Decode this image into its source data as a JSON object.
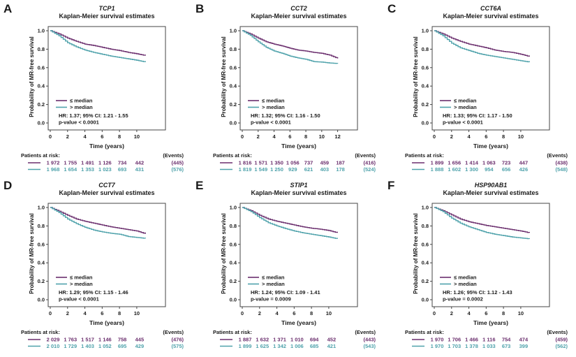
{
  "figure": {
    "subtitle": "Kaplan-Meier survival estimates",
    "ylabel": "Probability of MR-free survival",
    "xlabel": "Time (years)",
    "risk_header": "Patients at risk:",
    "events_header": "(Events)",
    "legend": [
      "≤ median",
      "> median"
    ],
    "colors": {
      "le_median": "#6b2f6e",
      "gt_median": "#4fa2ab",
      "text": "#1a1a1a",
      "box": "#444444"
    }
  },
  "chart_data": [
    {
      "type": "line",
      "panel": "A",
      "title": "TCP1",
      "ylim": [
        0,
        1
      ],
      "yticks": [
        0.0,
        0.2,
        0.4,
        0.6,
        0.8,
        1.0
      ],
      "xticks": [
        0,
        2,
        4,
        6,
        8,
        10
      ],
      "x_years": [
        0,
        1,
        2,
        3,
        4,
        5,
        6,
        7,
        8,
        9,
        10,
        11
      ],
      "series": [
        {
          "name": "≤ median",
          "color": "#6b2f6e",
          "values": [
            1.0,
            0.965,
            0.92,
            0.885,
            0.855,
            0.84,
            0.82,
            0.8,
            0.785,
            0.765,
            0.75,
            0.73
          ]
        },
        {
          "name": "> median",
          "color": "#4fa2ab",
          "values": [
            1.0,
            0.945,
            0.87,
            0.825,
            0.79,
            0.765,
            0.745,
            0.725,
            0.71,
            0.695,
            0.68,
            0.66
          ]
        }
      ],
      "hr_text": "HR: 1.37; 95% CI: 1.21 - 1.55",
      "p_text": "p-value < 0.0001",
      "risk": {
        "rows": [
          {
            "group": "≤ median",
            "counts": [
              "1 972",
              "1 755",
              "1 491",
              "1 126",
              "734",
              "442"
            ],
            "events": "(445)"
          },
          {
            "group": "> median",
            "counts": [
              "1 968",
              "1 654",
              "1 353",
              "1 023",
              "693",
              "431"
            ],
            "events": "(576)"
          }
        ]
      }
    },
    {
      "type": "line",
      "panel": "B",
      "title": "CCT2",
      "ylim": [
        0,
        1
      ],
      "yticks": [
        0.0,
        0.2,
        0.4,
        0.6,
        0.8,
        1.0
      ],
      "xticks": [
        0,
        2,
        4,
        6,
        8,
        10,
        12
      ],
      "x_years": [
        0,
        1,
        2,
        3,
        4,
        5,
        6,
        7,
        8,
        9,
        10,
        11,
        12
      ],
      "series": [
        {
          "name": "≤ median",
          "color": "#6b2f6e",
          "values": [
            1.0,
            0.965,
            0.92,
            0.88,
            0.855,
            0.835,
            0.81,
            0.79,
            0.78,
            0.765,
            0.755,
            0.735,
            0.7
          ]
        },
        {
          "name": "> median",
          "color": "#4fa2ab",
          "values": [
            1.0,
            0.95,
            0.88,
            0.82,
            0.78,
            0.755,
            0.725,
            0.705,
            0.69,
            0.665,
            0.66,
            0.65,
            0.645
          ]
        }
      ],
      "hr_text": "HR: 1.32; 95% CI: 1.16 - 1.50",
      "p_text": "p-value < 0.0001",
      "risk": {
        "rows": [
          {
            "group": "≤ median",
            "counts": [
              "1 816",
              "1 571",
              "1 350",
              "1 056",
              "737",
              "459",
              "187"
            ],
            "events": "(416)"
          },
          {
            "group": "> median",
            "counts": [
              "1 819",
              "1 549",
              "1 250",
              "929",
              "621",
              "403",
              "178"
            ],
            "events": "(524)"
          }
        ]
      }
    },
    {
      "type": "line",
      "panel": "C",
      "title": "CCT6A",
      "ylim": [
        0,
        1
      ],
      "yticks": [
        0.0,
        0.2,
        0.4,
        0.6,
        0.8,
        1.0
      ],
      "xticks": [
        0,
        2,
        4,
        6,
        8,
        10
      ],
      "x_years": [
        0,
        1,
        2,
        3,
        4,
        5,
        6,
        7,
        8,
        9,
        10,
        11
      ],
      "series": [
        {
          "name": "≤ median",
          "color": "#6b2f6e",
          "values": [
            1.0,
            0.965,
            0.92,
            0.885,
            0.855,
            0.835,
            0.815,
            0.79,
            0.775,
            0.765,
            0.745,
            0.72
          ]
        },
        {
          "name": "> median",
          "color": "#4fa2ab",
          "values": [
            1.0,
            0.945,
            0.865,
            0.815,
            0.785,
            0.755,
            0.735,
            0.72,
            0.705,
            0.69,
            0.675,
            0.66
          ]
        }
      ],
      "hr_text": "HR: 1.33; 95% CI: 1.17 - 1.50",
      "p_text": "p-value < 0.0001",
      "risk": {
        "rows": [
          {
            "group": "≤ median",
            "counts": [
              "1 899",
              "1 656",
              "1 414",
              "1 063",
              "723",
              "447"
            ],
            "events": "(438)"
          },
          {
            "group": "> median",
            "counts": [
              "1 888",
              "1 602",
              "1 300",
              "954",
              "656",
              "426"
            ],
            "events": "(548)"
          }
        ]
      }
    },
    {
      "type": "line",
      "panel": "D",
      "title": "CCT7",
      "ylim": [
        0,
        1
      ],
      "yticks": [
        0.0,
        0.2,
        0.4,
        0.6,
        0.8,
        1.0
      ],
      "xticks": [
        0,
        2,
        4,
        6,
        8,
        10
      ],
      "x_years": [
        0,
        1,
        2,
        3,
        4,
        5,
        6,
        7,
        8,
        9,
        10,
        11
      ],
      "series": [
        {
          "name": "≤ median",
          "color": "#6b2f6e",
          "values": [
            1.0,
            0.96,
            0.915,
            0.875,
            0.85,
            0.83,
            0.81,
            0.79,
            0.775,
            0.76,
            0.745,
            0.715
          ]
        },
        {
          "name": "> median",
          "color": "#4fa2ab",
          "values": [
            1.0,
            0.945,
            0.875,
            0.825,
            0.785,
            0.755,
            0.735,
            0.72,
            0.71,
            0.685,
            0.675,
            0.665
          ]
        }
      ],
      "hr_text": "HR: 1.29; 95% CI: 1.15 - 1.46",
      "p_text": "p-value < 0.0001",
      "risk": {
        "rows": [
          {
            "group": "≤ median",
            "counts": [
              "2 029",
              "1 763",
              "1 517",
              "1 146",
              "758",
              "445"
            ],
            "events": "(476)"
          },
          {
            "group": "> median",
            "counts": [
              "2 010",
              "1 729",
              "1 403",
              "1 052",
              "695",
              "429"
            ],
            "events": "(575)"
          }
        ]
      }
    },
    {
      "type": "line",
      "panel": "E",
      "title": "STIP1",
      "ylim": [
        0,
        1
      ],
      "yticks": [
        0.0,
        0.2,
        0.4,
        0.6,
        0.8,
        1.0
      ],
      "xticks": [
        0,
        2,
        4,
        6,
        8,
        10
      ],
      "x_years": [
        0,
        1,
        2,
        3,
        4,
        5,
        6,
        7,
        8,
        9,
        10,
        11
      ],
      "series": [
        {
          "name": "≤ median",
          "color": "#6b2f6e",
          "values": [
            1.0,
            0.965,
            0.915,
            0.875,
            0.85,
            0.83,
            0.81,
            0.79,
            0.775,
            0.765,
            0.75,
            0.725
          ]
        },
        {
          "name": "> median",
          "color": "#4fa2ab",
          "values": [
            1.0,
            0.955,
            0.89,
            0.835,
            0.8,
            0.77,
            0.745,
            0.725,
            0.71,
            0.695,
            0.68,
            0.66
          ]
        }
      ],
      "hr_text": "HR: 1.24; 95% CI: 1.09 - 1.41",
      "p_text": "p-value = 0.0009",
      "risk": {
        "rows": [
          {
            "group": "≤ median",
            "counts": [
              "1 887",
              "1 632",
              "1 371",
              "1 010",
              "694",
              "452"
            ],
            "events": "(443)"
          },
          {
            "group": "> median",
            "counts": [
              "1 899",
              "1 625",
              "1 342",
              "1 006",
              "685",
              "421"
            ],
            "events": "(543)"
          }
        ]
      }
    },
    {
      "type": "line",
      "panel": "F",
      "title": "HSP90AB1",
      "ylim": [
        0,
        1
      ],
      "yticks": [
        0.0,
        0.2,
        0.4,
        0.6,
        0.8,
        1.0
      ],
      "xticks": [
        0,
        2,
        4,
        6,
        8,
        10
      ],
      "x_years": [
        0,
        1,
        2,
        3,
        4,
        5,
        6,
        7,
        8,
        9,
        10,
        11
      ],
      "series": [
        {
          "name": "≤ median",
          "color": "#6b2f6e",
          "values": [
            1.0,
            0.965,
            0.92,
            0.875,
            0.845,
            0.825,
            0.805,
            0.79,
            0.775,
            0.76,
            0.745,
            0.725
          ]
        },
        {
          "name": "> median",
          "color": "#4fa2ab",
          "values": [
            1.0,
            0.955,
            0.885,
            0.83,
            0.79,
            0.76,
            0.73,
            0.71,
            0.695,
            0.68,
            0.67,
            0.66
          ]
        }
      ],
      "hr_text": "HR: 1.26; 95% CI: 1.12 - 1.43",
      "p_text": "p-value = 0.0002",
      "risk": {
        "rows": [
          {
            "group": "≤ median",
            "counts": [
              "1 970",
              "1 706",
              "1 466",
              "1 116",
              "754",
              "474"
            ],
            "events": "(459)"
          },
          {
            "group": "> median",
            "counts": [
              "1 970",
              "1 703",
              "1 378",
              "1 033",
              "673",
              "399"
            ],
            "events": "(562)"
          }
        ]
      }
    }
  ]
}
